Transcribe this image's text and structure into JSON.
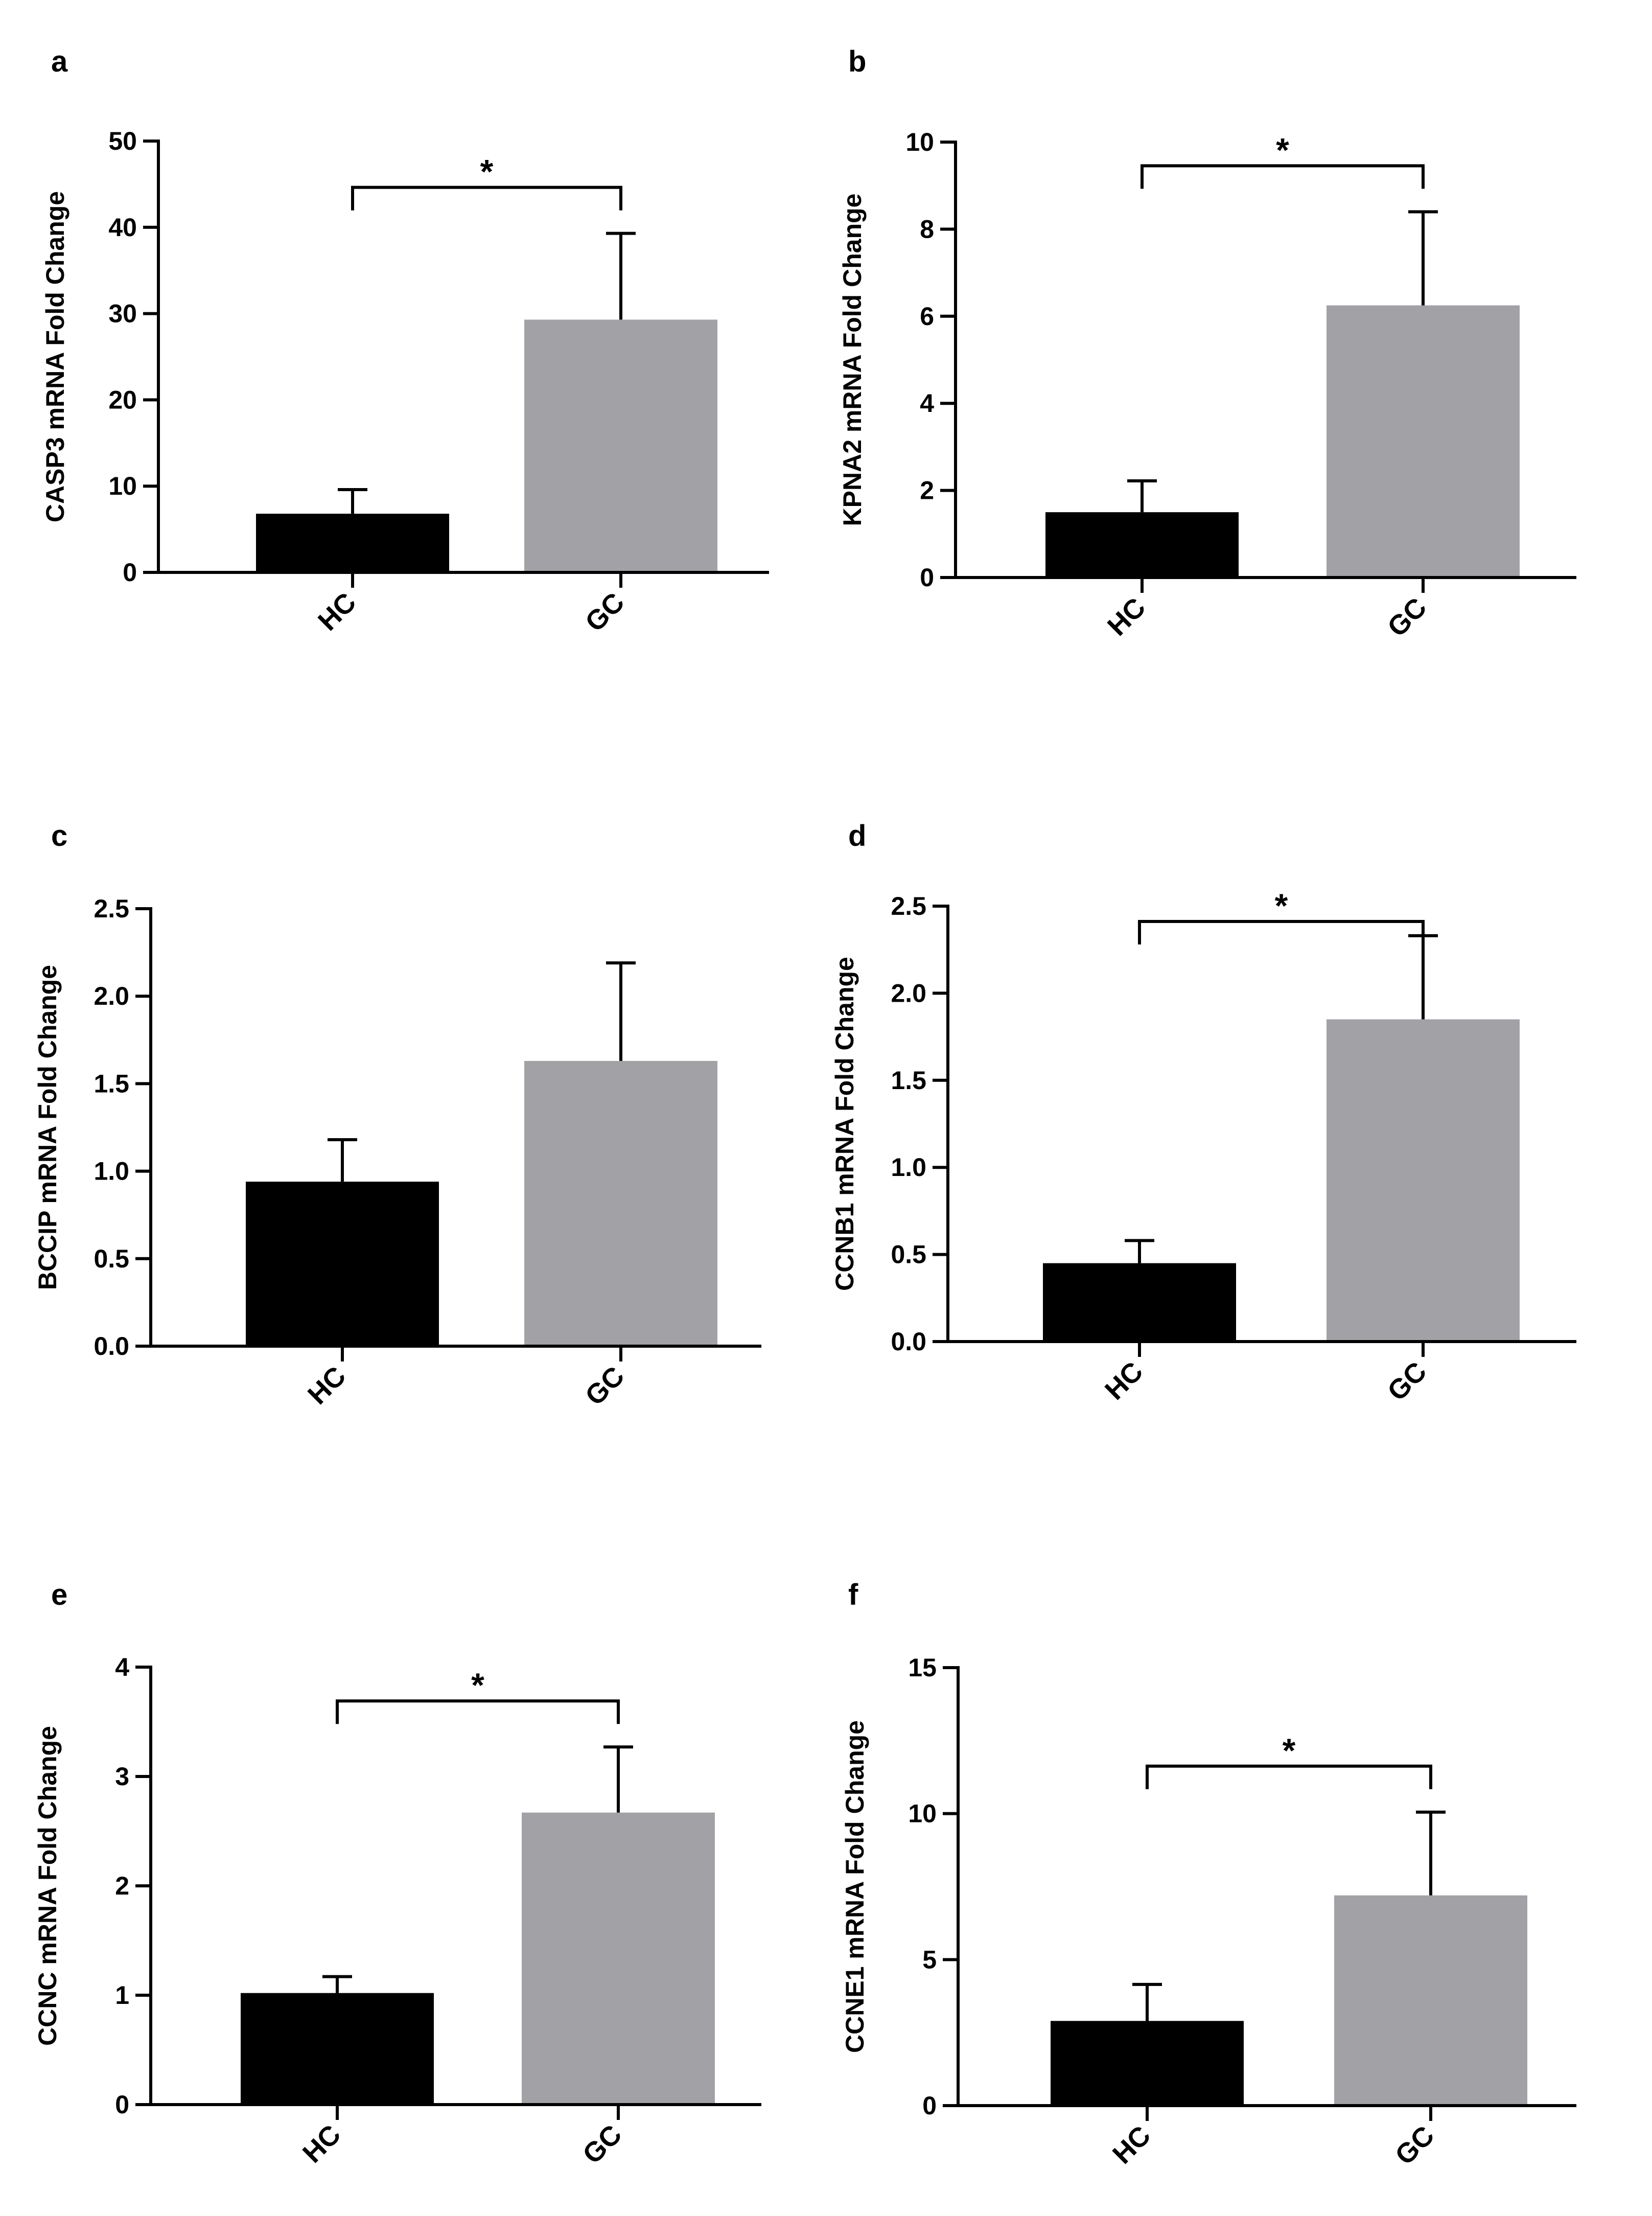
{
  "colors": {
    "HC": "#000000",
    "GC": "#a2a1a6",
    "axis": "#000000"
  },
  "chart_data": [
    {
      "panel": "a",
      "type": "bar",
      "categories": [
        "HC",
        "GC"
      ],
      "values": [
        6.8,
        29.3
      ],
      "errors": [
        2.8,
        10.0
      ],
      "ylabel": "CASP3 mRNA Fold Change",
      "ylim": [
        0,
        50
      ],
      "yticks": [
        0,
        10,
        20,
        30,
        40,
        50
      ],
      "tick_labels": [
        "0",
        "10",
        "20",
        "30",
        "40",
        "50"
      ],
      "significance": "*"
    },
    {
      "panel": "b",
      "type": "bar",
      "categories": [
        "HC",
        "GC"
      ],
      "values": [
        1.5,
        6.25
      ],
      "errors": [
        0.72,
        2.15
      ],
      "ylabel": "KPNA2 mRNA Fold Change",
      "ylim": [
        0,
        10
      ],
      "yticks": [
        0,
        2,
        4,
        6,
        8,
        10
      ],
      "tick_labels": [
        "0",
        "2",
        "4",
        "6",
        "8",
        "10"
      ],
      "significance": "*"
    },
    {
      "panel": "c",
      "type": "bar",
      "categories": [
        "HC",
        "GC"
      ],
      "values": [
        0.94,
        1.63
      ],
      "errors": [
        0.24,
        0.56
      ],
      "ylabel": "BCCIP mRNA Fold Change",
      "ylim": [
        0,
        2.5
      ],
      "yticks": [
        0,
        0.5,
        1.0,
        1.5,
        2.0,
        2.5
      ],
      "tick_labels": [
        "0.0",
        "0.5",
        "1.0",
        "1.5",
        "2.0",
        "2.5"
      ],
      "significance": ""
    },
    {
      "panel": "d",
      "type": "bar",
      "categories": [
        "HC",
        "GC"
      ],
      "values": [
        0.45,
        1.85
      ],
      "errors": [
        0.13,
        0.48
      ],
      "ylabel": "CCNB1 mRNA Fold Change",
      "ylim": [
        0,
        2.5
      ],
      "yticks": [
        0,
        0.5,
        1.0,
        1.5,
        2.0,
        2.5
      ],
      "tick_labels": [
        "0.0",
        "0.5",
        "1.0",
        "1.5",
        "2.0",
        "2.5"
      ],
      "significance": "*"
    },
    {
      "panel": "e",
      "type": "bar",
      "categories": [
        "HC",
        "GC"
      ],
      "values": [
        1.02,
        2.67
      ],
      "errors": [
        0.15,
        0.6
      ],
      "ylabel": "CCNC mRNA Fold Change",
      "ylim": [
        0,
        4
      ],
      "yticks": [
        0,
        1,
        2,
        3,
        4
      ],
      "tick_labels": [
        "0",
        "1",
        "2",
        "3",
        "4"
      ],
      "significance": "*"
    },
    {
      "panel": "f",
      "type": "bar",
      "categories": [
        "HC",
        "GC"
      ],
      "values": [
        2.9,
        7.2
      ],
      "errors": [
        1.25,
        2.85
      ],
      "ylabel": "CCNE1 mRNA Fold Change",
      "ylim": [
        0,
        15
      ],
      "yticks": [
        0,
        5,
        10,
        15
      ],
      "tick_labels": [
        "0",
        "5",
        "10",
        "15"
      ],
      "significance": "*"
    }
  ]
}
